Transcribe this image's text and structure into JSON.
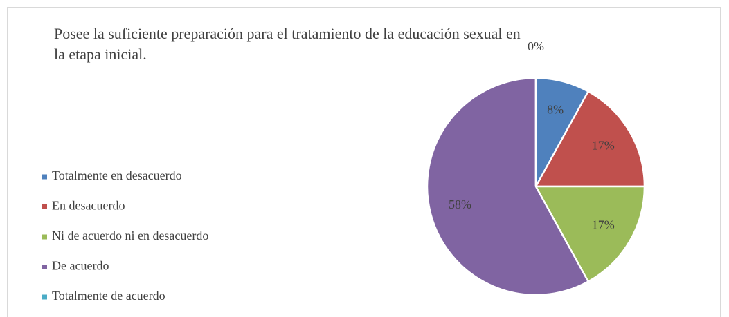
{
  "chart_data": {
    "type": "pie",
    "title": "Posee la suficiente preparación para el tratamiento de la educación sexual en la etapa inicial.",
    "categories": [
      "Totalmente en desacuerdo",
      "En desacuerdo",
      "Ni de acuerdo ni en desacuerdo",
      "De acuerdo",
      "Totalmente de acuerdo"
    ],
    "values": [
      8,
      17,
      17,
      58,
      0
    ],
    "value_labels": [
      "8%",
      "17%",
      "17%",
      "58%",
      "0%"
    ],
    "colors": [
      "#4f81bd",
      "#c0504d",
      "#9bbb59",
      "#8064a2",
      "#4bacc6"
    ],
    "legend": "left"
  }
}
